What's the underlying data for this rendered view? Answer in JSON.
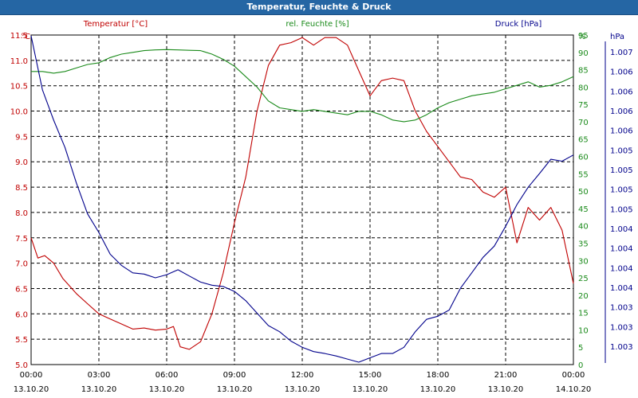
{
  "window": {
    "title": "Temperatur, Feuchte & Druck"
  },
  "chart_data": {
    "type": "line",
    "title": "Temperatur, Feuchte & Druck",
    "x_labels": [
      [
        "00:00",
        "13.10.20"
      ],
      [
        "03:00",
        "13.10.20"
      ],
      [
        "06:00",
        "13.10.20"
      ],
      [
        "09:00",
        "13.10.20"
      ],
      [
        "12:00",
        "13.10.20"
      ],
      [
        "15:00",
        "13.10.20"
      ],
      [
        "18:00",
        "13.10.20"
      ],
      [
        "21:00",
        "13.10.20"
      ],
      [
        "00:00",
        "14.10.20"
      ]
    ],
    "x_range_hours": [
      0,
      24
    ],
    "grid": true,
    "axes": {
      "temp": {
        "label": "Temperatur [°C]",
        "unit": "°C",
        "color": "#c00000",
        "range": [
          5.0,
          11.5
        ],
        "ticks": [
          "11.5",
          "11.0",
          "10.5",
          "10.0",
          "9.5",
          "9.0",
          "8.5",
          "8.0",
          "7.5",
          "7.0",
          "6.5",
          "6.0",
          "5.5",
          "5.0"
        ]
      },
      "hum": {
        "label": "rel. Feuchte [%]",
        "unit": "%",
        "color": "#1a8a1a",
        "range": [
          0,
          95
        ],
        "ticks": [
          "95",
          "90",
          "85",
          "80",
          "75",
          "70",
          "65",
          "60",
          "55",
          "50",
          "45",
          "40",
          "35",
          "30",
          "25",
          "20",
          "15",
          "10",
          "5",
          "0"
        ]
      },
      "press": {
        "label": "Druck [hPa]",
        "unit": "hPa",
        "color": "#00008b",
        "ticks": [
          "1.007",
          "1.006",
          "1.006",
          "1.006",
          "1.006",
          "1.005",
          "1.005",
          "1.005",
          "1.005",
          "1.004",
          "1.004",
          "1.004",
          "1.004",
          "1.003",
          "1.003",
          "1.003"
        ]
      }
    },
    "series": [
      {
        "name": "Temperatur [°C]",
        "axis": "temp",
        "color": "#c00000",
        "x": [
          0,
          0.3,
          0.6,
          1,
          1.4,
          2,
          2.5,
          3,
          3.5,
          4,
          4.5,
          5,
          5.5,
          6,
          6.3,
          6.6,
          7,
          7.5,
          8,
          8.5,
          9,
          9.5,
          10,
          10.5,
          11,
          11.5,
          12,
          12.5,
          13,
          13.5,
          14,
          14.5,
          15,
          15.5,
          16,
          16.5,
          17,
          17.5,
          18,
          18.5,
          19,
          19.5,
          20,
          20.5,
          21,
          21.5,
          22,
          22.5,
          23,
          23.5,
          24
        ],
        "values": [
          7.5,
          7.1,
          7.15,
          7.0,
          6.7,
          6.4,
          6.2,
          6.0,
          5.9,
          5.8,
          5.7,
          5.72,
          5.68,
          5.7,
          5.75,
          5.35,
          5.3,
          5.45,
          6.0,
          6.8,
          7.8,
          8.7,
          10.0,
          10.9,
          11.3,
          11.35,
          11.45,
          11.3,
          11.45,
          11.45,
          11.3,
          10.8,
          10.3,
          10.6,
          10.65,
          10.6,
          10.0,
          9.6,
          9.3,
          9.0,
          8.7,
          8.65,
          8.4,
          8.3,
          8.5,
          7.4,
          8.1,
          7.85,
          8.1,
          7.65,
          6.6
        ]
      },
      {
        "name": "rel. Feuchte [%]",
        "axis": "hum",
        "color": "#1a8a1a",
        "x": [
          0,
          0.5,
          1,
          1.5,
          2,
          2.5,
          3,
          3.5,
          4,
          4.5,
          5,
          5.5,
          6,
          6.5,
          7,
          7.5,
          8,
          8.5,
          9,
          9.5,
          10,
          10.5,
          11,
          11.5,
          12,
          12.5,
          13,
          13.5,
          14,
          14.5,
          15,
          15.5,
          16,
          16.5,
          17,
          17.5,
          18,
          18.5,
          19,
          19.5,
          20,
          20.5,
          21,
          21.5,
          22,
          22.5,
          23,
          23.5,
          24
        ],
        "values": [
          84.5,
          84.5,
          84,
          84.5,
          85.5,
          86.5,
          87,
          88.5,
          89.5,
          90,
          90.5,
          90.7,
          90.8,
          90.7,
          90.6,
          90.5,
          89.5,
          88,
          86,
          83,
          80,
          76,
          74,
          73.5,
          73,
          73.5,
          73,
          72.5,
          72,
          73,
          73,
          72,
          70.5,
          70,
          70.5,
          72,
          74,
          75.5,
          76.5,
          77.5,
          78,
          78.5,
          79.5,
          80.5,
          81.5,
          80,
          80.5,
          81.5,
          83
        ]
      },
      {
        "name": "Druck [hPa]",
        "axis": "press",
        "color": "#00008b",
        "x": [
          0,
          0.5,
          1,
          1.5,
          2,
          2.5,
          3,
          3.5,
          4,
          4.5,
          5,
          5.5,
          6,
          6.5,
          7,
          7.5,
          8,
          8.5,
          9,
          9.5,
          10,
          10.5,
          11,
          11.5,
          12,
          12.5,
          13,
          13.5,
          14,
          14.5,
          15,
          15.5,
          16,
          16.5,
          17,
          17.5,
          18,
          18.5,
          19,
          19.5,
          20,
          20.5,
          21,
          21.5,
          22,
          22.5,
          23,
          23.5,
          24
        ],
        "values": [
          1.00752,
          1.00665,
          1.00616,
          1.00572,
          1.00515,
          1.00465,
          1.00435,
          1.004,
          1.00382,
          1.0037,
          1.00368,
          1.00362,
          1.00367,
          1.00375,
          1.00365,
          1.00355,
          1.0035,
          1.00348,
          1.0034,
          1.00325,
          1.00305,
          1.00285,
          1.00275,
          1.0026,
          1.0025,
          1.00243,
          1.0024,
          1.00236,
          1.00231,
          1.00226,
          1.00233,
          1.0024,
          1.0024,
          1.0025,
          1.00275,
          1.00295,
          1.003,
          1.0031,
          1.00345,
          1.0037,
          1.00395,
          1.00413,
          1.00445,
          1.0048,
          1.00508,
          1.0053,
          1.00553,
          1.0055,
          1.0056
        ]
      }
    ]
  }
}
